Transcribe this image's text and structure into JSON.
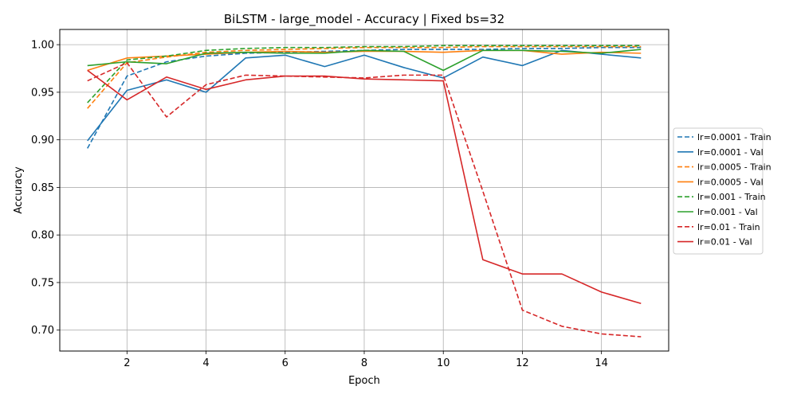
{
  "chart_data": {
    "type": "line",
    "title": "BiLSTM - large_model - Accuracy | Fixed bs=32",
    "xlabel": "Epoch",
    "ylabel": "Accuracy",
    "x": [
      1,
      2,
      3,
      4,
      5,
      6,
      7,
      8,
      9,
      10,
      11,
      12,
      13,
      14,
      15
    ],
    "xlim": [
      0.3,
      15.7
    ],
    "ylim": [
      0.678,
      1.016
    ],
    "xticks": [
      2,
      4,
      6,
      8,
      10,
      12,
      14
    ],
    "yticks": [
      0.7,
      0.75,
      0.8,
      0.85,
      0.9,
      0.95,
      1.0
    ],
    "xtick_labels": [
      "2",
      "4",
      "6",
      "8",
      "10",
      "12",
      "14"
    ],
    "ytick_labels": [
      "0.70",
      "0.75",
      "0.80",
      "0.85",
      "0.90",
      "0.95",
      "1.00"
    ],
    "grid": true,
    "legend_position": "right-outside",
    "series": [
      {
        "name": "lr=0.0001 - Train",
        "color": "#1f77b4",
        "style": "dashed",
        "values": [
          0.891,
          0.967,
          0.982,
          0.988,
          0.991,
          0.992,
          0.993,
          0.994,
          0.995,
          0.995,
          0.995,
          0.996,
          0.996,
          0.997,
          0.997
        ]
      },
      {
        "name": "lr=0.0001 - Val",
        "color": "#1f77b4",
        "style": "solid",
        "values": [
          0.899,
          0.952,
          0.963,
          0.95,
          0.986,
          0.989,
          0.977,
          0.989,
          0.976,
          0.965,
          0.987,
          0.978,
          0.994,
          0.99,
          0.986
        ]
      },
      {
        "name": "lr=0.0005 - Train",
        "color": "#ff7f0e",
        "style": "dashed",
        "values": [
          0.933,
          0.981,
          0.987,
          0.992,
          0.994,
          0.995,
          0.996,
          0.997,
          0.997,
          0.997,
          0.998,
          0.998,
          0.998,
          0.998,
          0.998
        ]
      },
      {
        "name": "lr=0.0005 - Val",
        "color": "#ff7f0e",
        "style": "solid",
        "values": [
          0.973,
          0.986,
          0.988,
          0.99,
          0.992,
          0.993,
          0.992,
          0.993,
          0.993,
          0.992,
          0.994,
          0.994,
          0.99,
          0.992,
          0.991
        ]
      },
      {
        "name": "lr=0.001 - Train",
        "color": "#2ca02c",
        "style": "dashed",
        "values": [
          0.939,
          0.984,
          0.988,
          0.994,
          0.996,
          0.997,
          0.997,
          0.998,
          0.998,
          0.999,
          0.999,
          0.999,
          0.999,
          0.999,
          0.999
        ]
      },
      {
        "name": "lr=0.001 - Val",
        "color": "#2ca02c",
        "style": "solid",
        "values": [
          0.978,
          0.982,
          0.98,
          0.991,
          0.992,
          0.991,
          0.991,
          0.994,
          0.993,
          0.973,
          0.994,
          0.994,
          0.993,
          0.991,
          0.995
        ]
      },
      {
        "name": "lr=0.01 - Train",
        "color": "#d62728",
        "style": "dashed",
        "values": [
          0.962,
          0.981,
          0.924,
          0.958,
          0.968,
          0.967,
          0.966,
          0.965,
          0.968,
          0.968,
          0.846,
          0.721,
          0.704,
          0.696,
          0.693
        ]
      },
      {
        "name": "lr=0.01 - Val",
        "color": "#d62728",
        "style": "solid",
        "values": [
          0.973,
          0.942,
          0.966,
          0.953,
          0.963,
          0.967,
          0.967,
          0.964,
          0.963,
          0.962,
          0.774,
          0.759,
          0.759,
          0.74,
          0.728
        ]
      }
    ]
  }
}
